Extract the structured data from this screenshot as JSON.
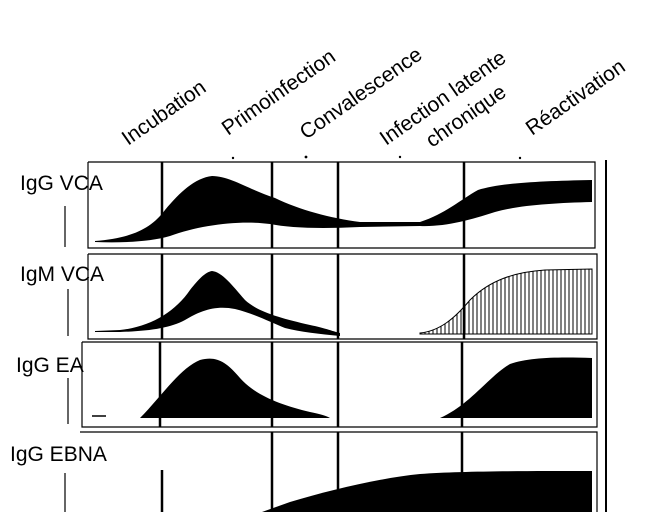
{
  "phases": [
    "Incubation",
    "Primoinfection",
    "Convalescence",
    "Infection latente",
    "chronique",
    "Réactivation"
  ],
  "rows": [
    {
      "id": "igg-vca",
      "label": "IgG VCA"
    },
    {
      "id": "igm-vca",
      "label": "IgM VCA"
    },
    {
      "id": "igg-ea",
      "label": "IgG EA"
    },
    {
      "id": "igg-ebna",
      "label": "IgG EBNA"
    }
  ]
}
